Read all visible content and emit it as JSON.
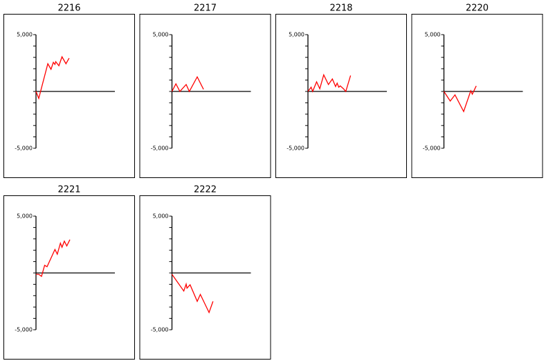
{
  "chart_data": [
    {
      "type": "line",
      "title": "2216",
      "xlim": [
        0,
        100
      ],
      "ylim": [
        -5000,
        5000
      ],
      "yticks": [
        {
          "value": 5000,
          "label": "5,000"
        },
        {
          "value": -5000,
          "label": "-5,000"
        }
      ],
      "y_minor_ticks": [
        4000,
        3000,
        2000,
        1000,
        0,
        -1000,
        -2000,
        -3000,
        -4000
      ],
      "hline": 0,
      "x": [
        0,
        3.5,
        15,
        19,
        22,
        24,
        25,
        29,
        33,
        38,
        42
      ],
      "series": [
        {
          "color": "#ff0000",
          "values": [
            0,
            -610,
            2440,
            1950,
            2560,
            2380,
            2620,
            2260,
            3050,
            2440,
            2930
          ]
        }
      ]
    },
    {
      "type": "line",
      "title": "2217",
      "xlim": [
        0,
        100
      ],
      "ylim": [
        -5000,
        5000
      ],
      "yticks": [
        {
          "value": 5000,
          "label": "5,000"
        },
        {
          "value": -5000,
          "label": "-5,000"
        }
      ],
      "y_minor_ticks": [
        4000,
        3000,
        2000,
        1000,
        0,
        -1000,
        -2000,
        -3000,
        -4000
      ],
      "hline": 0,
      "x": [
        0,
        5,
        10,
        18,
        22,
        32,
        40
      ],
      "series": [
        {
          "color": "#ff0000",
          "values": [
            0,
            670,
            0,
            610,
            0,
            1280,
            180
          ]
        }
      ]
    },
    {
      "type": "line",
      "title": "2218",
      "xlim": [
        0,
        100
      ],
      "ylim": [
        -5000,
        5000
      ],
      "yticks": [
        {
          "value": 5000,
          "label": "5,000"
        },
        {
          "value": -5000,
          "label": "-5,000"
        }
      ],
      "y_minor_ticks": [
        4000,
        3000,
        2000,
        1000,
        0,
        -1000,
        -2000,
        -3000,
        -4000
      ],
      "hline": 0,
      "x": [
        0,
        4,
        6,
        11,
        15,
        20,
        26,
        31,
        35,
        37,
        39,
        41,
        45,
        48,
        54
      ],
      "series": [
        {
          "color": "#ff0000",
          "values": [
            0,
            370,
            0,
            850,
            240,
            1460,
            610,
            1100,
            430,
            730,
            370,
            490,
            240,
            0,
            1400
          ]
        }
      ]
    },
    {
      "type": "line",
      "title": "2220",
      "xlim": [
        0,
        100
      ],
      "ylim": [
        -5000,
        5000
      ],
      "yticks": [
        {
          "value": 5000,
          "label": "5,000"
        },
        {
          "value": -5000,
          "label": "-5,000"
        }
      ],
      "y_minor_ticks": [
        4000,
        3000,
        2000,
        1000,
        0,
        -1000,
        -2000,
        -3000,
        -4000
      ],
      "hline": 0,
      "x": [
        0,
        8,
        14,
        25,
        34,
        36,
        41
      ],
      "series": [
        {
          "color": "#ff0000",
          "values": [
            0,
            -850,
            -300,
            -1770,
            60,
            -240,
            490
          ]
        }
      ]
    },
    {
      "type": "line",
      "title": "2221",
      "xlim": [
        0,
        100
      ],
      "ylim": [
        -5000,
        5000
      ],
      "yticks": [
        {
          "value": 5000,
          "label": "5,000"
        },
        {
          "value": -5000,
          "label": "-5,000"
        }
      ],
      "y_minor_ticks": [
        4000,
        3000,
        2000,
        1000,
        0,
        -1000,
        -2000,
        -3000,
        -4000
      ],
      "hline": 0,
      "x": [
        0,
        3.5,
        7,
        11,
        14,
        24,
        27,
        31,
        33,
        36,
        39,
        43
      ],
      "series": [
        {
          "color": "#ff0000",
          "values": [
            -120,
            -120,
            -300,
            670,
            550,
            2070,
            1650,
            2620,
            2260,
            2800,
            2380,
            2930
          ]
        }
      ]
    },
    {
      "type": "line",
      "title": "2222",
      "xlim": [
        0,
        100
      ],
      "ylim": [
        -5000,
        5000
      ],
      "yticks": [
        {
          "value": 5000,
          "label": "5,000"
        },
        {
          "value": -5000,
          "label": "-5,000"
        }
      ],
      "y_minor_ticks": [
        4000,
        3000,
        2000,
        1000,
        0,
        -1000,
        -2000,
        -3000,
        -4000
      ],
      "hline": 0,
      "x": [
        0,
        15,
        18,
        19,
        23,
        32,
        36,
        47,
        52
      ],
      "series": [
        {
          "color": "#ff0000",
          "values": [
            -120,
            -1590,
            -980,
            -1340,
            -1040,
            -2500,
            -1890,
            -3480,
            -2500
          ]
        }
      ]
    }
  ]
}
